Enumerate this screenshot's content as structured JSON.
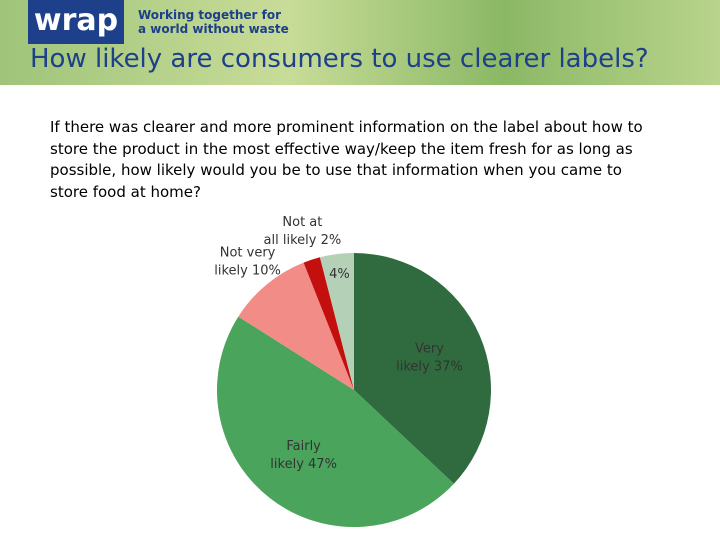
{
  "header": {
    "logo": "wrap",
    "tagline": [
      "Working together for",
      "a world without waste"
    ]
  },
  "question": [
    "If there was clearer and more prominent information on the label about how to",
    "store the product in the most effective way/keep the item fresh for as long as",
    "possible, how likely would you be to use that information when you came to",
    "store  food at home?"
  ],
  "chart_data": {
    "type": "pie",
    "title": "How likely are consumers to use clearer labels?",
    "categories": [
      "Very likely",
      "Fairly likely",
      "Not very likely",
      "Not at all likely",
      null
    ],
    "values": [
      37,
      47,
      10,
      2,
      4
    ],
    "value_labels": [
      "37%",
      "47%",
      "10%",
      "2%",
      "4%"
    ],
    "colors": [
      "#2f6b3e",
      "#4aa45c",
      "#f28c86",
      "#c40f0f",
      "#b4d0b6"
    ]
  }
}
